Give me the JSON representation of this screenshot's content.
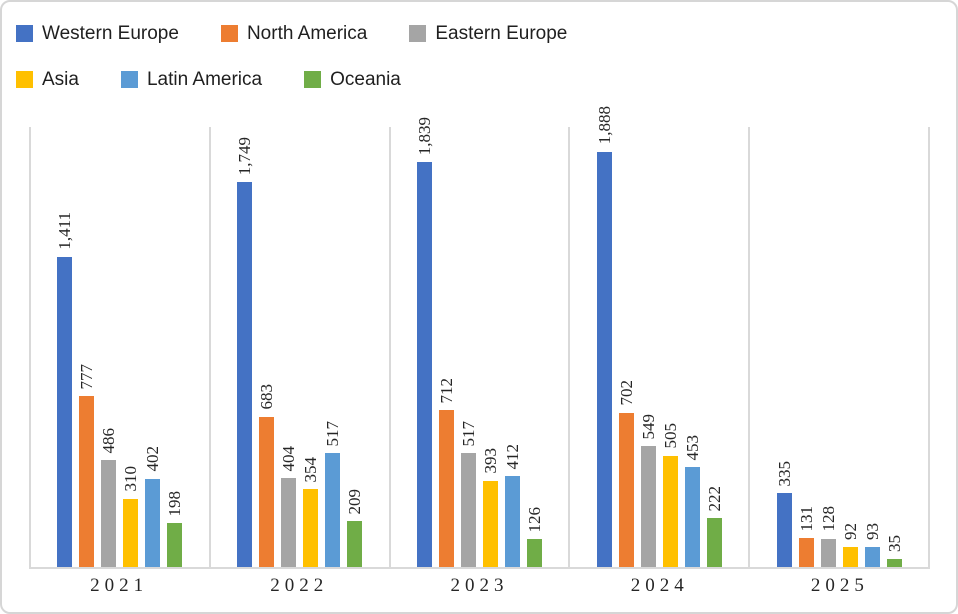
{
  "chart_data": {
    "type": "bar",
    "title": "",
    "categories": [
      "2021",
      "2022",
      "2023",
      "2024",
      "2025"
    ],
    "series": [
      {
        "name": "Western Europe",
        "color": "#4472C4",
        "values": [
          1411,
          1749,
          1839,
          1888,
          335
        ]
      },
      {
        "name": "North America",
        "color": "#ED7D31",
        "values": [
          777,
          683,
          712,
          702,
          131
        ]
      },
      {
        "name": "Eastern Europe",
        "color": "#A5A5A5",
        "values": [
          486,
          404,
          517,
          549,
          128
        ]
      },
      {
        "name": "Asia",
        "color": "#FFC000",
        "values": [
          310,
          354,
          393,
          505,
          92
        ]
      },
      {
        "name": "Latin America",
        "color": "#5B9BD5",
        "values": [
          402,
          517,
          412,
          453,
          93
        ]
      },
      {
        "name": "Oceania",
        "color": "#70AD47",
        "values": [
          198,
          209,
          126,
          222,
          35
        ]
      }
    ],
    "data_labels": [
      [
        "1,411",
        "777",
        "486",
        "310",
        "402",
        "198"
      ],
      [
        "1,749",
        "683",
        "404",
        "354",
        "517",
        "209"
      ],
      [
        "1,839",
        "712",
        "517",
        "393",
        "412",
        "126"
      ],
      [
        "1,888",
        "702",
        "549",
        "505",
        "453",
        "222"
      ],
      [
        "335",
        "131",
        "128",
        "92",
        "93",
        "35"
      ]
    ],
    "xlabel": "",
    "ylabel": "",
    "ylim": [
      0,
      2000
    ],
    "y_axis_visible": false,
    "grid": "vertical category separators",
    "grid_color": "#d9d9d9",
    "legend_position": "top-left",
    "legend_rows": 2,
    "legend_items_per_row": 3
  }
}
